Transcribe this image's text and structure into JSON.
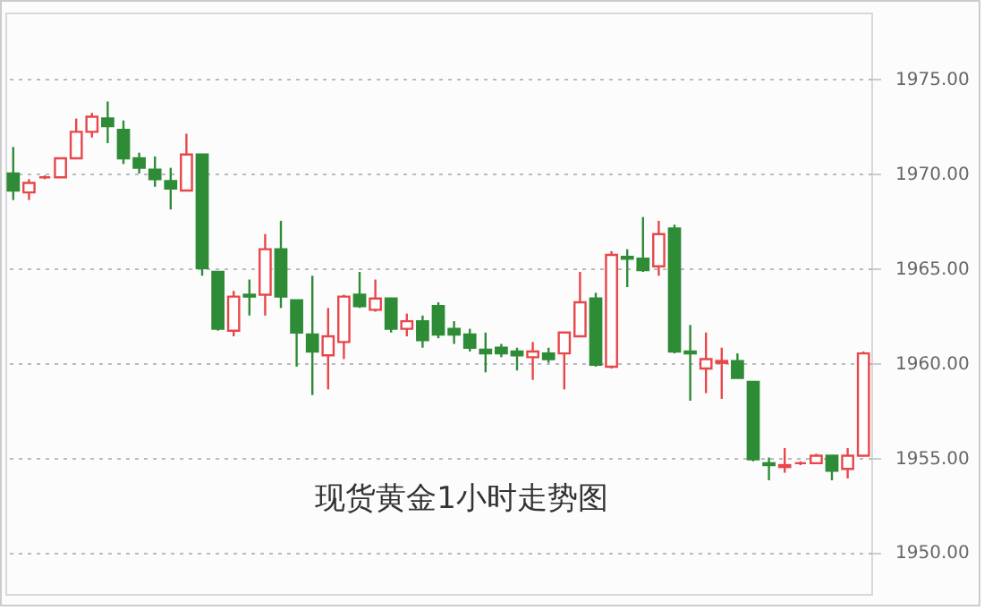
{
  "chart_data": {
    "type": "candlestick",
    "title": "现货黄金1小时走势图",
    "categories": [
      null,
      null,
      null,
      null,
      null,
      null,
      null,
      null,
      null,
      null,
      null,
      null,
      null,
      null,
      null,
      null,
      null,
      null,
      null,
      null,
      null,
      null,
      null,
      null,
      null,
      null,
      null,
      null,
      null,
      null,
      null,
      null,
      null,
      null,
      null,
      null,
      null,
      null,
      null,
      null,
      null,
      null,
      null,
      null,
      null,
      null,
      null,
      null,
      null,
      null,
      null,
      null,
      null,
      null,
      null
    ],
    "ohlc": [
      [
        1970.0,
        1971.4,
        1968.6,
        1969.1
      ],
      [
        1969.0,
        1969.7,
        1968.6,
        1969.5
      ],
      [
        1969.8,
        1969.9,
        1969.7,
        1969.8
      ],
      [
        1969.8,
        1970.8,
        1969.8,
        1970.8
      ],
      [
        1970.8,
        1972.9,
        1970.8,
        1972.2
      ],
      [
        1972.2,
        1973.2,
        1971.9,
        1973.0
      ],
      [
        1972.9,
        1973.8,
        1971.6,
        1972.5
      ],
      [
        1972.3,
        1972.8,
        1970.5,
        1970.8
      ],
      [
        1970.8,
        1971.1,
        1970.0,
        1970.3
      ],
      [
        1970.2,
        1970.9,
        1969.3,
        1969.7
      ],
      [
        1969.6,
        1970.3,
        1968.1,
        1969.2
      ],
      [
        1969.1,
        1972.1,
        1969.1,
        1971.0
      ],
      [
        1971.0,
        1971.0,
        1964.6,
        1965.0
      ],
      [
        1964.8,
        1964.8,
        1961.7,
        1961.8
      ],
      [
        1961.7,
        1963.8,
        1961.4,
        1963.5
      ],
      [
        1963.6,
        1964.4,
        1962.5,
        1963.5
      ],
      [
        1963.6,
        1966.8,
        1962.5,
        1966.0
      ],
      [
        1966.0,
        1967.5,
        1962.9,
        1963.5
      ],
      [
        1963.3,
        1963.3,
        1959.8,
        1961.6
      ],
      [
        1961.5,
        1964.6,
        1958.3,
        1960.6
      ],
      [
        1960.4,
        1962.9,
        1958.6,
        1961.4
      ],
      [
        1961.1,
        1963.6,
        1960.2,
        1963.5
      ],
      [
        1963.6,
        1964.8,
        1962.9,
        1963.0
      ],
      [
        1962.8,
        1964.4,
        1962.7,
        1963.4
      ],
      [
        1963.4,
        1963.4,
        1961.6,
        1961.8
      ],
      [
        1961.8,
        1962.6,
        1961.4,
        1962.2
      ],
      [
        1962.2,
        1962.5,
        1960.8,
        1961.2
      ],
      [
        1963.0,
        1963.2,
        1961.3,
        1961.5
      ],
      [
        1961.8,
        1962.2,
        1961.0,
        1961.5
      ],
      [
        1961.5,
        1961.8,
        1960.6,
        1960.8
      ],
      [
        1960.7,
        1961.6,
        1959.5,
        1960.5
      ],
      [
        1960.8,
        1961.0,
        1960.3,
        1960.5
      ],
      [
        1960.6,
        1960.8,
        1959.6,
        1960.4
      ],
      [
        1960.3,
        1961.1,
        1959.1,
        1960.6
      ],
      [
        1960.5,
        1960.8,
        1960.0,
        1960.2
      ],
      [
        1960.5,
        1961.6,
        1958.6,
        1961.6
      ],
      [
        1961.4,
        1964.8,
        1961.4,
        1963.2
      ],
      [
        1963.4,
        1963.7,
        1959.8,
        1959.9
      ],
      [
        1959.8,
        1965.9,
        1959.7,
        1965.7
      ],
      [
        1965.6,
        1966.0,
        1964.0,
        1965.5
      ],
      [
        1965.5,
        1967.7,
        1964.8,
        1964.9
      ],
      [
        1965.1,
        1967.5,
        1964.6,
        1966.8
      ],
      [
        1967.1,
        1967.3,
        1960.5,
        1960.6
      ],
      [
        1960.6,
        1962.0,
        1958.0,
        1960.5
      ],
      [
        1959.7,
        1961.6,
        1958.4,
        1960.2
      ],
      [
        1960.0,
        1960.8,
        1958.1,
        1960.1
      ],
      [
        1960.1,
        1960.5,
        1959.2,
        1959.2
      ],
      [
        1959.0,
        1959.0,
        1954.8,
        1954.9
      ],
      [
        1954.7,
        1955.0,
        1953.8,
        1954.6
      ],
      [
        1954.5,
        1955.5,
        1954.2,
        1954.6
      ],
      [
        1954.7,
        1954.8,
        1954.6,
        1954.7
      ],
      [
        1954.7,
        1955.2,
        1954.7,
        1955.1
      ],
      [
        1955.1,
        1955.1,
        1953.8,
        1954.3
      ],
      [
        1954.4,
        1955.5,
        1953.9,
        1955.1
      ],
      [
        1955.1,
        1960.6,
        1955.1,
        1960.5
      ]
    ],
    "colors": [
      "#2e8b36",
      "#e8464a",
      "#e8464a",
      "#e8464a",
      "#e8464a",
      "#e8464a",
      "#2e8b36",
      "#2e8b36",
      "#2e8b36",
      "#2e8b36",
      "#2e8b36",
      "#e8464a",
      "#2e8b36",
      "#2e8b36",
      "#e8464a",
      "#2e8b36",
      "#e8464a",
      "#2e8b36",
      "#2e8b36",
      "#2e8b36",
      "#e8464a",
      "#e8464a",
      "#2e8b36",
      "#e8464a",
      "#2e8b36",
      "#e8464a",
      "#2e8b36",
      "#2e8b36",
      "#2e8b36",
      "#2e8b36",
      "#2e8b36",
      "#2e8b36",
      "#2e8b36",
      "#e8464a",
      "#2e8b36",
      "#e8464a",
      "#e8464a",
      "#2e8b36",
      "#e8464a",
      "#2e8b36",
      "#2e8b36",
      "#e8464a",
      "#2e8b36",
      "#2e8b36",
      "#e8464a",
      "#e8464a",
      "#2e8b36",
      "#2e8b36",
      "#2e8b36",
      "#e8464a",
      "#e8464a",
      "#e8464a",
      "#2e8b36",
      "#e8464a",
      "#e8464a"
    ],
    "ylim": [
      1947.8,
      1978.5
    ],
    "yticks": [
      {
        "value": 1950,
        "label": "1950.00"
      },
      {
        "value": 1955,
        "label": "1955.00"
      },
      {
        "value": 1960,
        "label": "1960.00"
      },
      {
        "value": 1965,
        "label": "1965.00"
      },
      {
        "value": 1970,
        "label": "1970.00"
      },
      {
        "value": 1975,
        "label": "1975.00"
      }
    ],
    "grid": "y"
  }
}
